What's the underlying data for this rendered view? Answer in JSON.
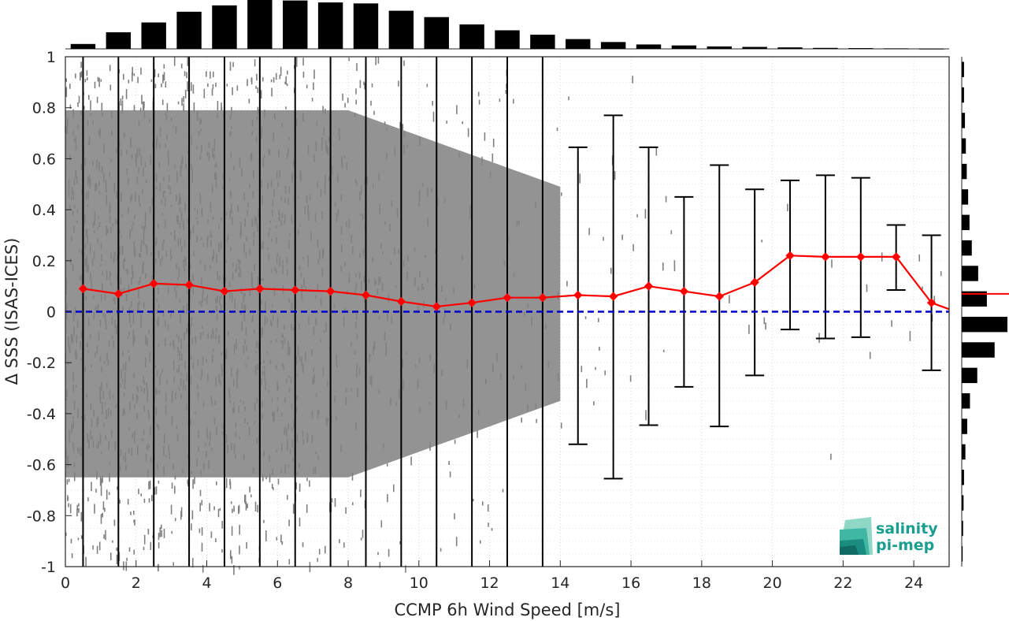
{
  "chart_data": {
    "type": "scatter",
    "xlabel": "CCMP 6h Wind Speed [m/s]",
    "ylabel": "Δ SSS (ISAS-ICES)",
    "xlim": [
      0,
      25
    ],
    "ylim": [
      -1,
      1
    ],
    "xticks": [
      0,
      2,
      4,
      6,
      8,
      10,
      12,
      14,
      16,
      18,
      20,
      22,
      24
    ],
    "yticks": [
      -1,
      -0.8,
      -0.6,
      -0.4,
      -0.2,
      0,
      0.2,
      0.4,
      0.6,
      0.8,
      1
    ],
    "xtick_labels": [
      "0",
      "2",
      "4",
      "6",
      "8",
      "10",
      "12",
      "14",
      "16",
      "18",
      "20",
      "22",
      "24"
    ],
    "ytick_labels": [
      "-1",
      "-0.8",
      "-0.6",
      "-0.4",
      "-0.2",
      "0",
      "0.2",
      "0.4",
      "0.6",
      "0.8",
      "1"
    ],
    "grid": true,
    "scatter_color": "#808080",
    "mean_line_color": "#ff0000",
    "zero_line_color": "#0000cc",
    "binned_stats": {
      "x": [
        0.5,
        1.5,
        2.5,
        3.5,
        4.5,
        5.5,
        6.5,
        7.5,
        8.5,
        9.5,
        10.5,
        11.5,
        12.5,
        13.5,
        14.5,
        15.5,
        16.5,
        17.5,
        18.5,
        19.5,
        20.5,
        21.5,
        22.5,
        23.5,
        24.5
      ],
      "mean": [
        0.09,
        0.07,
        0.11,
        0.105,
        0.08,
        0.09,
        0.085,
        0.08,
        0.065,
        0.04,
        0.02,
        0.035,
        0.055,
        0.055,
        0.065,
        0.06,
        0.1,
        0.08,
        0.06,
        0.115,
        0.22,
        0.215,
        0.215,
        0.215,
        0.035
      ],
      "err_low": [
        -1,
        -1,
        -1,
        -1,
        -1,
        -1,
        -1,
        -1,
        -1,
        -1,
        -1,
        -1,
        -1,
        -1,
        -0.52,
        -0.655,
        -0.445,
        -0.295,
        -0.45,
        -0.25,
        -0.07,
        -0.105,
        -0.1,
        0.085,
        -0.23
      ],
      "err_high": [
        1,
        1,
        1,
        1,
        1,
        1,
        1,
        1,
        1,
        1,
        1,
        1,
        1,
        1,
        0.645,
        0.77,
        0.645,
        0.45,
        0.575,
        0.48,
        0.515,
        0.535,
        0.525,
        0.34,
        0.3
      ],
      "mean_tail_end": [
        25,
        0.01
      ]
    },
    "top_histogram": {
      "bin_centers": [
        0.5,
        1.5,
        2.5,
        3.5,
        4.5,
        5.5,
        6.5,
        7.5,
        8.5,
        9.5,
        10.5,
        11.5,
        12.5,
        13.5,
        14.5,
        15.5,
        16.5,
        17.5,
        18.5,
        19.5,
        20.5,
        21.5,
        22.5,
        23.5,
        24.5
      ],
      "relative_counts": [
        0.1,
        0.34,
        0.54,
        0.76,
        0.89,
        1.0,
        0.99,
        0.95,
        0.93,
        0.78,
        0.65,
        0.5,
        0.38,
        0.29,
        0.2,
        0.14,
        0.09,
        0.07,
        0.05,
        0.04,
        0.03,
        0.02,
        0.015,
        0.01,
        0.005
      ]
    },
    "right_histogram": {
      "bin_centers": [
        0.95,
        0.85,
        0.75,
        0.65,
        0.55,
        0.45,
        0.35,
        0.25,
        0.15,
        0.05,
        -0.05,
        -0.15,
        -0.25,
        -0.35,
        -0.45,
        -0.55,
        -0.65,
        -0.75,
        -0.85,
        -0.95
      ],
      "relative_counts": [
        0.05,
        0.05,
        0.07,
        0.09,
        0.11,
        0.14,
        0.17,
        0.22,
        0.36,
        0.55,
        1.0,
        0.72,
        0.34,
        0.18,
        0.12,
        0.08,
        0.05,
        0.04,
        0.03,
        0.02
      ],
      "mean_value": 0.07
    }
  },
  "logo": {
    "line1": "salinity",
    "line2": "pi-mep"
  }
}
